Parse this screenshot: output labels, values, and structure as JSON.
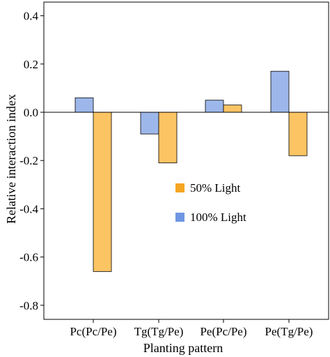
{
  "chart_data": {
    "type": "bar",
    "xlabel": "Planting pattern",
    "ylabel": "Relative interaction index",
    "categories": [
      "Pc(Pc/Pe)",
      "Tg(Tg/Pe)",
      "Pe(Pc/Pe)",
      "Pe(Tg/Pe)"
    ],
    "series": [
      {
        "name": "100% Light",
        "color": "#9db7ea",
        "values": [
          0.06,
          -0.09,
          0.05,
          0.17
        ]
      },
      {
        "name": "50% Light",
        "color": "#fcc463",
        "values": [
          -0.66,
          -0.21,
          0.03,
          -0.18
        ]
      }
    ],
    "legend_order": [
      1,
      0
    ],
    "legend_marker_colors": [
      "#f5a623",
      "#6f96e2"
    ],
    "legend_position": "center-right",
    "yticks": [
      0.4,
      0.2,
      0.0,
      -0.2,
      -0.4,
      -0.6,
      -0.8
    ],
    "ytick_labels": [
      "0.4",
      "0.2",
      "0.0",
      "-0.2",
      "-0.4",
      "-0.6",
      "-0.8"
    ],
    "ylim": [
      -0.86,
      0.45
    ],
    "grid": false,
    "zero_line": true
  }
}
